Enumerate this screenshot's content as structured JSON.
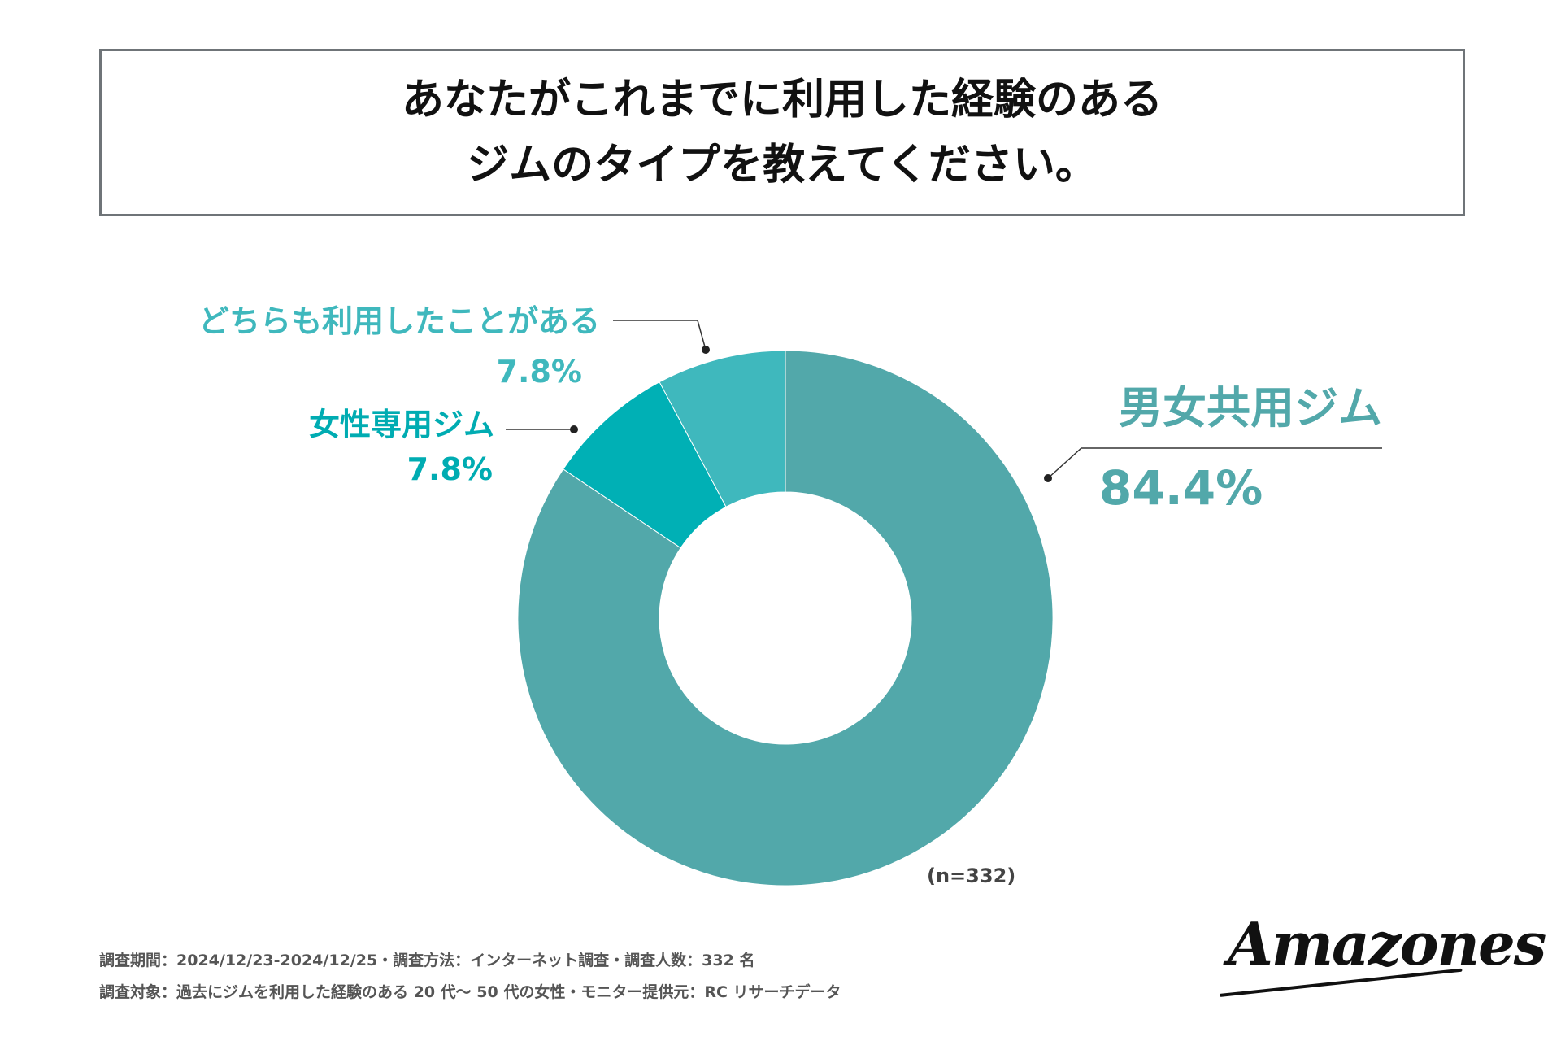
{
  "title": {
    "line1": "あなたがこれまでに利用した経験のある",
    "line2": "ジムのタイプを教えてください。"
  },
  "chart_data": {
    "type": "pie",
    "variant": "donut",
    "title": "",
    "sample_size": "(n=332)",
    "slices": [
      {
        "label": "男女共用ジム",
        "value": 84.4,
        "value_label": "84.4%",
        "color": "#52a8aa",
        "label_color": "#52a8aa"
      },
      {
        "label": "女性専用ジム",
        "value": 7.8,
        "value_label": "7.8%",
        "color": "#00b0b5",
        "label_color": "#00acb2"
      },
      {
        "label": "どちらも利用したことがある",
        "value": 7.8,
        "value_label": "7.8%",
        "color": "#3fb8bd",
        "label_color": "#3fb8bd"
      }
    ]
  },
  "footer": {
    "line1": "調査期間：2024/12/23-2024/12/25・調査方法：インターネット調査・調査人数：332 名",
    "line2": "調査対象：過去にジムを利用した経験のある 20 代〜 50 代の女性・モニター提供元：RC リサーチデータ"
  },
  "logo": {
    "text": "Amazones"
  }
}
